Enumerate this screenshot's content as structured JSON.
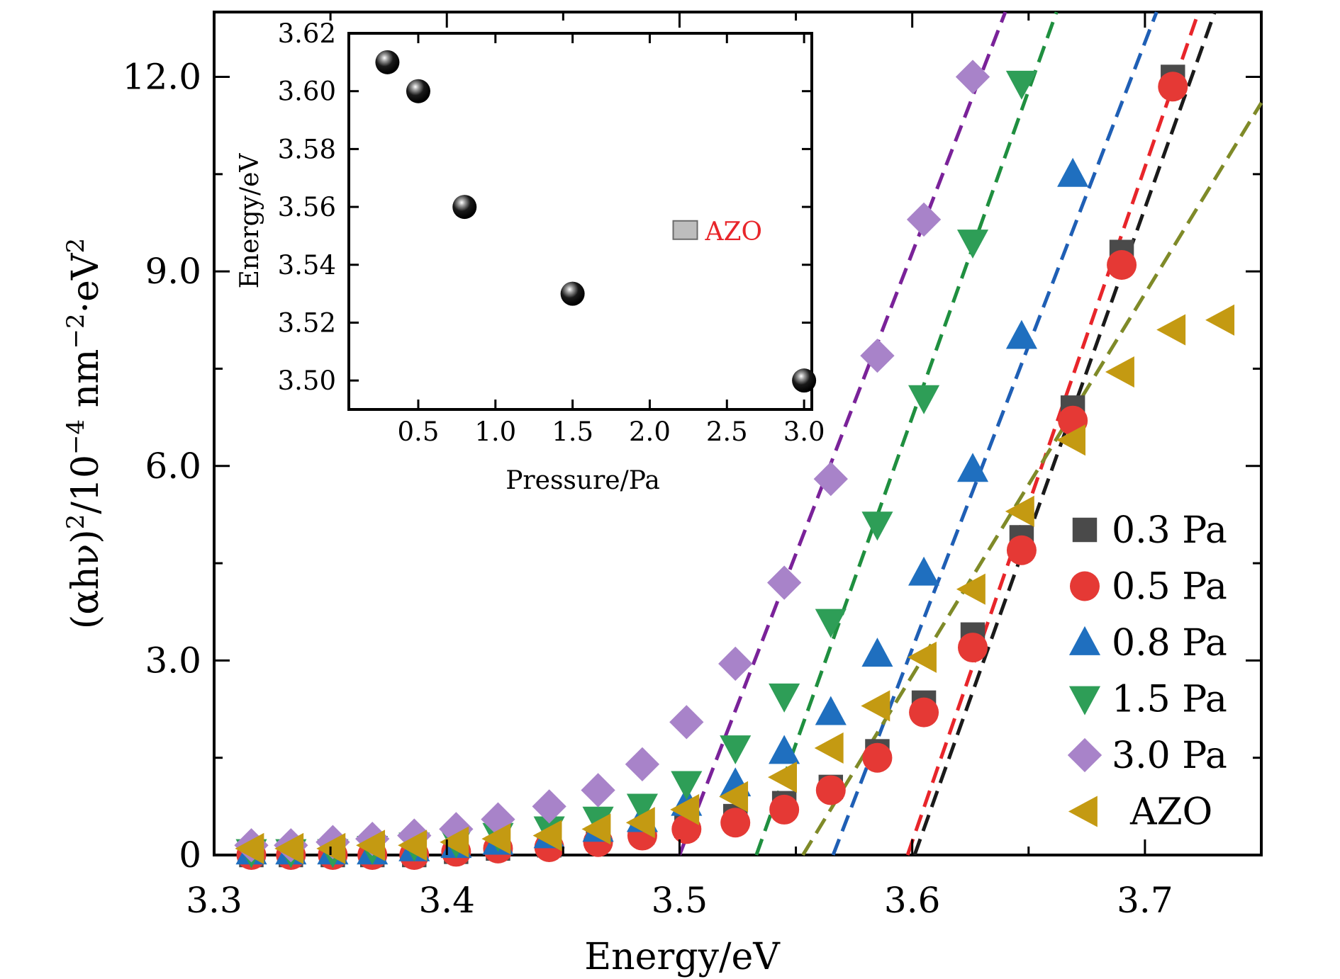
{
  "chart_data": [
    {
      "type": "scatter",
      "xlabel": "Energy/eV",
      "ylabel_parts": [
        "(αhν)",
        "2",
        "/10",
        "−4",
        " nm",
        "−2",
        "·eV",
        "2"
      ],
      "xlim": [
        3.3,
        3.75
      ],
      "ylim": [
        0,
        13.0
      ],
      "xticks": [
        3.3,
        3.4,
        3.5,
        3.6,
        3.7
      ],
      "xtick_labels": [
        "3.3",
        "3.4",
        "3.5",
        "3.6",
        "3.7"
      ],
      "yticks": [
        0,
        3.0,
        6.0,
        9.0,
        12.0
      ],
      "ytick_labels": [
        "0",
        "3.0",
        "6.0",
        "9.0",
        "12.0"
      ],
      "grid": false,
      "legend_position": "lower-right",
      "series": [
        {
          "name": "0.3 Pa",
          "marker": "square",
          "color": "#4a4a4a",
          "x": [
            3.316,
            3.333,
            3.351,
            3.368,
            3.386,
            3.404,
            3.422,
            3.444,
            3.465,
            3.484,
            3.503,
            3.524,
            3.545,
            3.565,
            3.585,
            3.605,
            3.626,
            3.647,
            3.669,
            3.69,
            3.712
          ],
          "y": [
            0.0,
            0.0,
            0.0,
            0.0,
            0.0,
            0.05,
            0.1,
            0.15,
            0.25,
            0.35,
            0.45,
            0.6,
            0.8,
            1.05,
            1.6,
            2.35,
            3.4,
            4.9,
            6.9,
            9.3,
            12.0
          ]
        },
        {
          "name": "0.5 Pa",
          "marker": "circle",
          "color": "#e53935",
          "x": [
            3.316,
            3.333,
            3.351,
            3.368,
            3.386,
            3.404,
            3.422,
            3.444,
            3.465,
            3.484,
            3.503,
            3.524,
            3.545,
            3.565,
            3.585,
            3.605,
            3.626,
            3.647,
            3.669,
            3.69,
            3.712
          ],
          "y": [
            0.0,
            0.0,
            0.0,
            0.0,
            0.0,
            0.05,
            0.1,
            0.12,
            0.2,
            0.3,
            0.4,
            0.5,
            0.7,
            1.0,
            1.5,
            2.2,
            3.2,
            4.7,
            6.7,
            9.1,
            11.85
          ]
        },
        {
          "name": "0.8 Pa",
          "marker": "triangle-up",
          "color": "#1f6fbf",
          "x": [
            3.316,
            3.333,
            3.351,
            3.368,
            3.386,
            3.404,
            3.422,
            3.444,
            3.465,
            3.484,
            3.503,
            3.524,
            3.545,
            3.565,
            3.585,
            3.605,
            3.626,
            3.647,
            3.669
          ],
          "y": [
            0.05,
            0.05,
            0.05,
            0.05,
            0.1,
            0.15,
            0.2,
            0.3,
            0.4,
            0.55,
            0.8,
            1.1,
            1.6,
            2.2,
            3.1,
            4.35,
            5.95,
            8.0,
            10.5
          ]
        },
        {
          "name": "1.5 Pa",
          "marker": "triangle-down",
          "color": "#2e9e57",
          "x": [
            3.316,
            3.333,
            3.351,
            3.368,
            3.386,
            3.404,
            3.422,
            3.444,
            3.465,
            3.484,
            3.503,
            3.524,
            3.545,
            3.565,
            3.585,
            3.605,
            3.626,
            3.647
          ],
          "y": [
            0.05,
            0.05,
            0.05,
            0.1,
            0.15,
            0.2,
            0.3,
            0.4,
            0.55,
            0.75,
            1.1,
            1.65,
            2.45,
            3.6,
            5.1,
            7.05,
            9.45,
            11.9
          ]
        },
        {
          "name": "3.0 Pa",
          "marker": "diamond",
          "color": "#a883c9",
          "x": [
            3.316,
            3.333,
            3.351,
            3.368,
            3.386,
            3.404,
            3.422,
            3.444,
            3.465,
            3.484,
            3.503,
            3.524,
            3.545,
            3.565,
            3.585,
            3.605,
            3.626
          ],
          "y": [
            0.15,
            0.15,
            0.2,
            0.25,
            0.3,
            0.4,
            0.55,
            0.75,
            1.0,
            1.4,
            2.05,
            2.95,
            4.2,
            5.8,
            7.7,
            9.8,
            12.0
          ]
        },
        {
          "name": "AZO",
          "marker": "triangle-left",
          "color": "#c49a12",
          "x": [
            3.316,
            3.333,
            3.351,
            3.368,
            3.386,
            3.404,
            3.422,
            3.444,
            3.465,
            3.484,
            3.503,
            3.524,
            3.545,
            3.565,
            3.585,
            3.605,
            3.626,
            3.647,
            3.669,
            3.69,
            3.712,
            3.733
          ],
          "y": [
            0.1,
            0.1,
            0.1,
            0.15,
            0.15,
            0.2,
            0.25,
            0.3,
            0.4,
            0.5,
            0.7,
            0.9,
            1.2,
            1.65,
            2.3,
            3.05,
            4.1,
            5.3,
            6.4,
            7.45,
            8.1,
            8.25
          ]
        }
      ],
      "fit_lines": [
        {
          "color": "#1a1a1a",
          "x": [
            3.601,
            3.73
          ],
          "y": [
            0,
            13.0
          ]
        },
        {
          "color": "#e8252a",
          "x": [
            3.598,
            3.723
          ],
          "y": [
            0,
            13.0
          ]
        },
        {
          "color": "#1f5fb5",
          "x": [
            3.566,
            3.705
          ],
          "y": [
            0,
            13.0
          ]
        },
        {
          "color": "#1f8f3f",
          "x": [
            3.533,
            3.662
          ],
          "y": [
            0,
            13.0
          ]
        },
        {
          "color": "#7a2299",
          "x": [
            3.5,
            3.64
          ],
          "y": [
            0,
            13.0
          ]
        },
        {
          "color": "#7f8a28",
          "x": [
            3.553,
            3.75
          ],
          "y": [
            0,
            11.6
          ]
        }
      ]
    },
    {
      "type": "scatter",
      "xlabel": "Pressure/Pa",
      "ylabel": "Energy/eV",
      "xlim": [
        0.05,
        3.05
      ],
      "ylim": [
        3.49,
        3.62
      ],
      "xticks": [
        0.5,
        1.0,
        1.5,
        2.0,
        2.5,
        3.0
      ],
      "xtick_labels": [
        "0.5",
        "1.0",
        "1.5",
        "2.0",
        "2.5",
        "3.0"
      ],
      "yticks": [
        3.5,
        3.52,
        3.54,
        3.56,
        3.58,
        3.6,
        3.62
      ],
      "ytick_labels": [
        "3.50",
        "3.52",
        "3.54",
        "3.56",
        "3.58",
        "3.60",
        "3.62"
      ],
      "series": [
        {
          "marker": "sphere",
          "color": "#000000",
          "x": [
            0.3,
            0.5,
            0.8,
            1.5,
            3.0
          ],
          "y": [
            3.61,
            3.6,
            3.56,
            3.53,
            3.5
          ]
        }
      ],
      "annotation": {
        "text": "AZO",
        "color": "#e8252a",
        "x": 2.23,
        "y": 3.552,
        "marker": "square",
        "marker_color": "#bdbdbd"
      }
    }
  ]
}
